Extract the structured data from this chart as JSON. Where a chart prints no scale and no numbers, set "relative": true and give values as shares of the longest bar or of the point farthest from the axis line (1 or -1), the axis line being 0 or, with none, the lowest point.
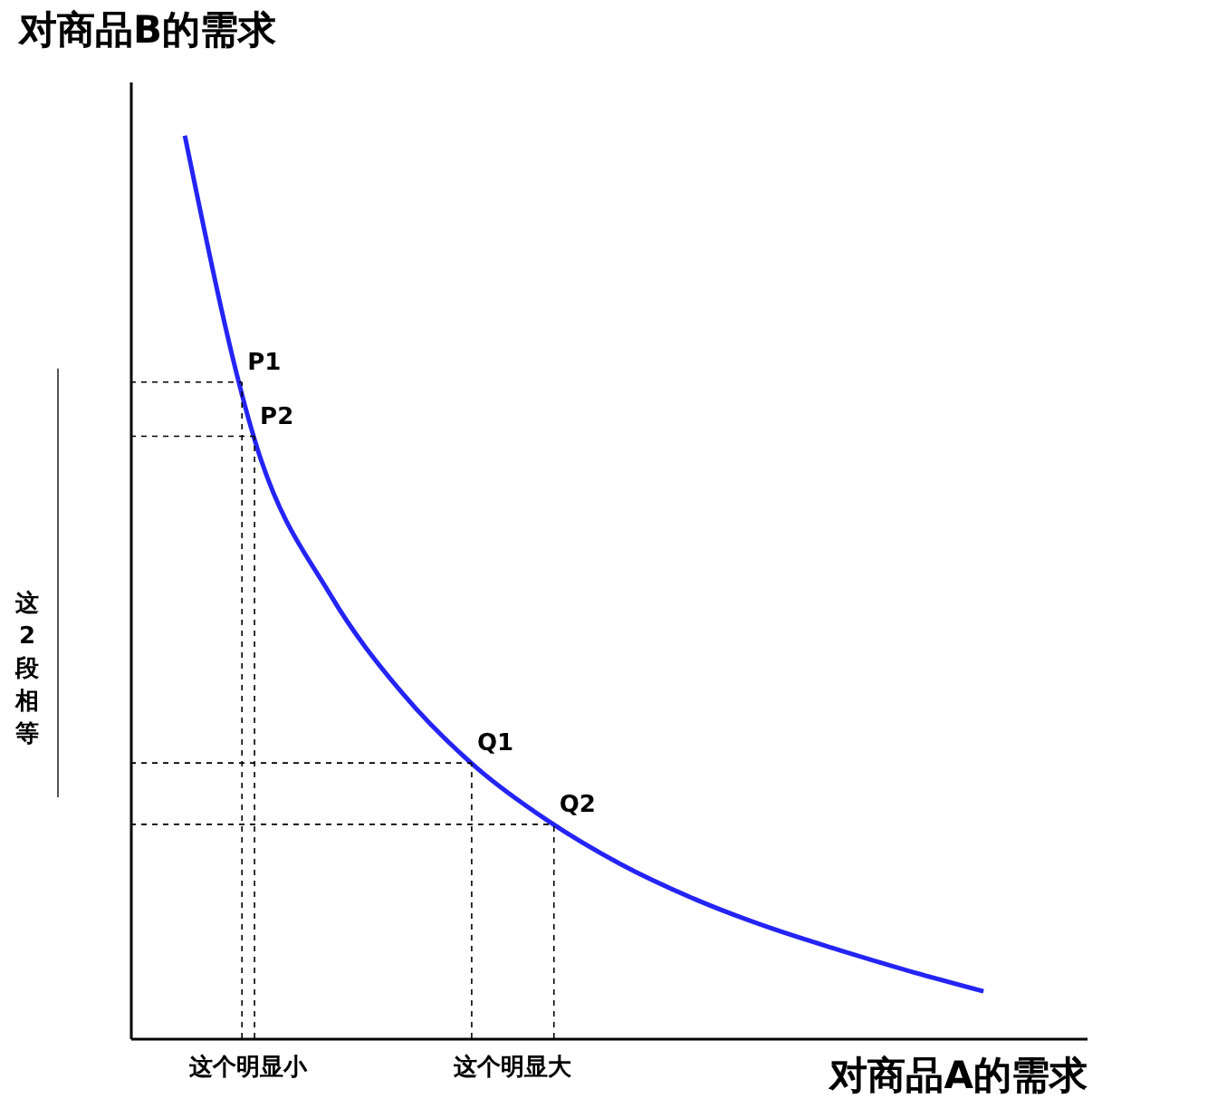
{
  "chart_data": {
    "type": "line",
    "relative": true,
    "ylabel": "对商品B的需求",
    "xlabel": "对商品A的需求",
    "tick_labels": false,
    "categories": [
      null,
      null,
      null,
      null,
      null,
      null,
      null,
      null,
      null,
      null,
      null,
      null
    ],
    "series": [
      {
        "color": "#2424f5",
        "values": [
          1.0,
          0.653,
          0.492,
          0.382,
          0.301,
          0.241,
          0.193,
          0.155,
          0.124,
          0.098,
          0.074,
          0.052
        ]
      }
    ],
    "ref_lines": [
      {
        "axis": "y",
        "value": 0.727,
        "label": "P1",
        "line_style": "dashed"
      },
      {
        "axis": "y",
        "value": 0.667,
        "label": "P2",
        "line_style": "dashed"
      },
      {
        "axis": "y",
        "value": 0.305,
        "label": "Q1",
        "line_style": "dashed"
      },
      {
        "axis": "y",
        "value": 0.237,
        "label": "Q2",
        "line_style": "dashed"
      }
    ],
    "annotations": [
      "这个明显小",
      "这个明显大",
      "这2段相等"
    ]
  }
}
